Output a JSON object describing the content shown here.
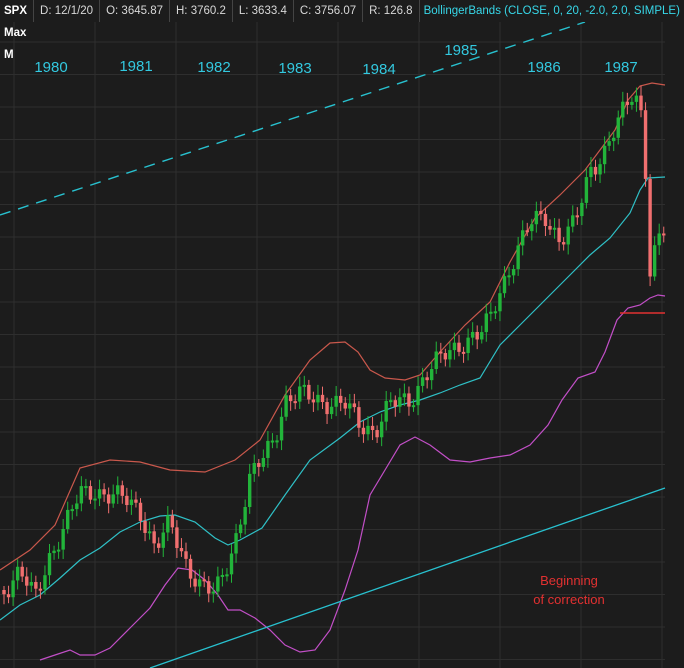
{
  "header": {
    "symbol": "SPX Max M",
    "date": "D: 12/1/20",
    "open": "O: 3645.87",
    "high": "H: 3760.2",
    "low": "L: 3633.4",
    "close": "C: 3756.07",
    "range": "R: 126.8",
    "study": "BollingerBands (CLOSE, 0, 20, -2.0, 2.0, SIMPLE)"
  },
  "colors": {
    "background": "#1c1c1c",
    "grid": "#2e2e2e",
    "up_candle": "#22b43a",
    "down_candle": "#f06f6f",
    "upper_band": "#c9584c",
    "middle_band": "#2fc0c6",
    "lower_band": "#c24fc7",
    "trendline": "#28c1cf",
    "annotation": "#e23131"
  },
  "chart_data": {
    "type": "candlestick",
    "symbol": "SPX",
    "interval": "monthly",
    "study": "BollingerBands (CLOSE, 0, 20, -2.0, 2.0, SIMPLE)",
    "year_labels": [
      "1980",
      "1981",
      "1982",
      "1983",
      "1984",
      "1985",
      "1986",
      "1987"
    ],
    "grid": true,
    "annotations": [
      {
        "text": "Beginning of correction"
      }
    ],
    "trendlines": [
      {
        "style": "dashed"
      },
      {
        "style": "solid"
      }
    ]
  }
}
